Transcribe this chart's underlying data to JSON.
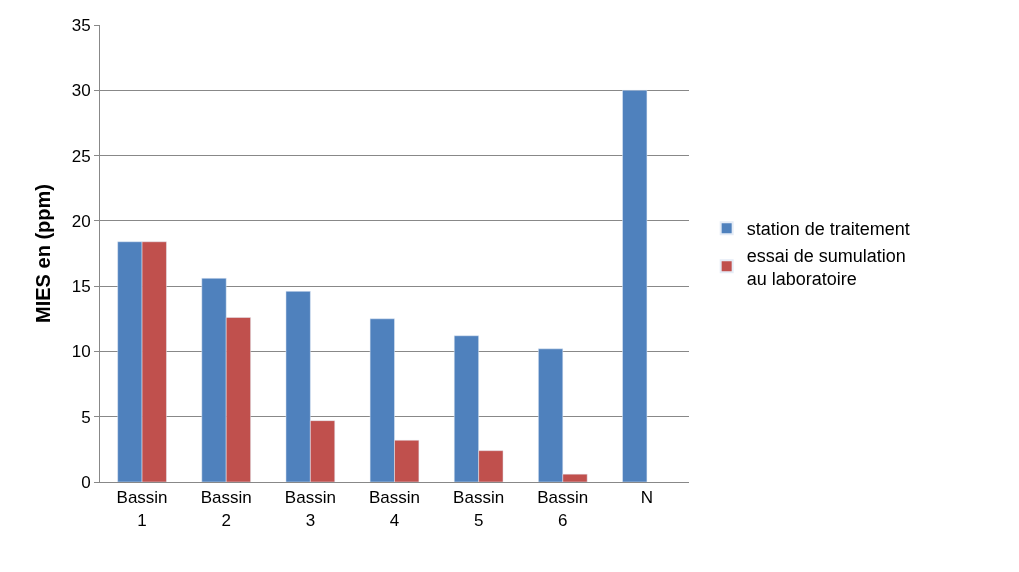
{
  "chart_data": {
    "type": "bar",
    "ylabel": "MIES en (ppm)",
    "categories": [
      "Bassin 1",
      "Bassin 2",
      "Bassin 3",
      "Bassin 4",
      "Bassin 5",
      "Bassin 6",
      "N"
    ],
    "series": [
      {
        "name": "station de traitement",
        "color": "#4f81bd",
        "values": [
          18.4,
          15.6,
          14.6,
          12.5,
          11.2,
          10.2,
          30
        ]
      },
      {
        "name": "essai de sumulation  au laboratoire",
        "color": "#c0504d",
        "values": [
          18.4,
          12.6,
          4.7,
          3.2,
          2.4,
          0.6,
          null
        ]
      }
    ],
    "ylim": [
      0,
      35
    ],
    "yticks": [
      0,
      5,
      10,
      15,
      20,
      25,
      30,
      35
    ],
    "grid": "y",
    "legend": "right"
  }
}
